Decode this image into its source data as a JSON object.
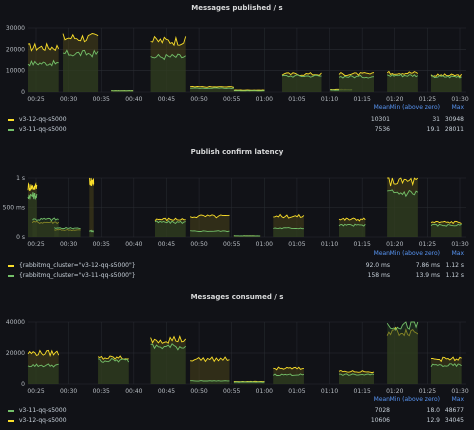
{
  "colors": {
    "yellow": "#fade2a",
    "green": "#73bf69",
    "fill_yellow": "#4a4419",
    "fill_green": "#243a22",
    "grid": "#2a2d33"
  },
  "legend_headers": {
    "mean": "Mean",
    "min": "Min (above zero)",
    "max": "Max"
  },
  "panels": [
    {
      "title": "Messages published / s",
      "yticks": [
        "30000",
        "20000",
        "10000",
        "0"
      ],
      "xticks": [
        "00:25",
        "00:30",
        "00:35",
        "00:40",
        "00:45",
        "00:50",
        "00:55",
        "01:00",
        "01:05",
        "01:10",
        "01:15",
        "01:20",
        "01:25",
        "01:30"
      ],
      "legend": [
        {
          "name": "v3-12-qq-s5000",
          "color": "yellow",
          "mean": "10301",
          "min": "31",
          "max": "30948"
        },
        {
          "name": "v3-11-qq-s5000",
          "color": "green",
          "mean": "7536",
          "min": "19.1",
          "max": "28011"
        }
      ]
    },
    {
      "title": "Publish confirm latency",
      "yticks": [
        "1 s",
        "500 ms",
        "0 s"
      ],
      "xticks": [
        "00:25",
        "00:30",
        "00:35",
        "00:40",
        "00:45",
        "00:50",
        "00:55",
        "01:00",
        "01:05",
        "01:10",
        "01:15",
        "01:20",
        "01:25",
        "01:30"
      ],
      "legend": [
        {
          "name": "{rabbitmq_cluster=\"v3-12-qq-s5000\"}",
          "color": "yellow",
          "mean": "92.0 ms",
          "min": "7.86 ms",
          "max": "1.12 s"
        },
        {
          "name": "{rabbitmq_cluster=\"v3-11-qq-s5000\"}",
          "color": "green",
          "mean": "158 ms",
          "min": "13.9 ms",
          "max": "1.12 s"
        }
      ]
    },
    {
      "title": "Messages consumed / s",
      "yticks": [
        "40000",
        "20000",
        "0"
      ],
      "xticks": [
        "00:25",
        "00:30",
        "00:35",
        "00:40",
        "00:45",
        "00:50",
        "00:55",
        "01:00",
        "01:05",
        "01:10",
        "01:15",
        "01:20",
        "01:25",
        "01:30"
      ],
      "legend": [
        {
          "name": "v3-11-qq-s5000",
          "color": "green",
          "mean": "7028",
          "min": "18.0",
          "max": "48677"
        },
        {
          "name": "v3-12-qq-s5000",
          "color": "yellow",
          "mean": "10606",
          "min": "12.9",
          "max": "34045"
        }
      ]
    }
  ]
}
